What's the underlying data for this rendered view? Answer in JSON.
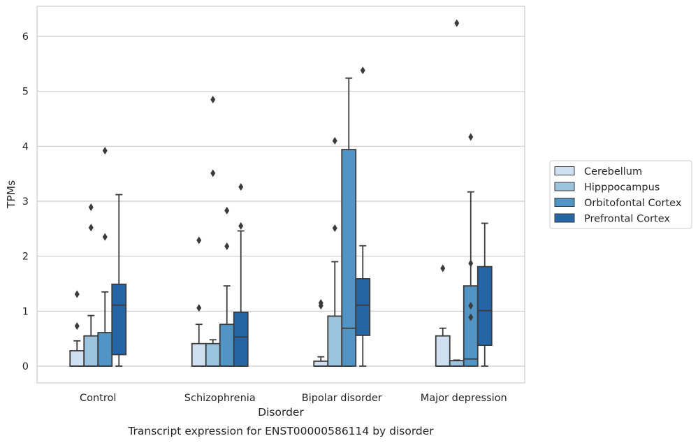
{
  "caption": "Transcript expression for ENST00000586114 by disorder",
  "colors": {
    "Cerebellum": "#d0e0f1",
    "Hipppocampus": "#9cc4df",
    "Orbitofontal Cortex": "#5295c5",
    "Prefrontal Cortex": "#2565a6",
    "box_edge": "#3b3b3b",
    "grid": "#cccccc",
    "frame": "#cccccc"
  },
  "chart_data": {
    "type": "box",
    "title": "",
    "xlabel": "Disorder",
    "ylabel": "TPMs",
    "ylim": [
      -0.3,
      6.55
    ],
    "yticks": [
      0,
      1,
      2,
      3,
      4,
      5,
      6
    ],
    "grid": true,
    "legend_position": "right",
    "categories": [
      "Control",
      "Schizophrenia",
      "Bipolar disorder",
      "Major depression"
    ],
    "series": [
      {
        "name": "Cerebellum",
        "boxes": [
          {
            "whislo": 0.0,
            "q1": 0.0,
            "med": 0.0,
            "q3": 0.28,
            "whishi": 0.46,
            "fliers": [
              0.73,
              1.31
            ]
          },
          {
            "whislo": 0.0,
            "q1": 0.0,
            "med": 0.0,
            "q3": 0.41,
            "whishi": 0.76,
            "fliers": [
              1.06,
              2.29
            ]
          },
          {
            "whislo": 0.0,
            "q1": 0.0,
            "med": 0.0,
            "q3": 0.09,
            "whishi": 0.17,
            "fliers": [
              1.1,
              1.15
            ]
          },
          {
            "whislo": 0.0,
            "q1": 0.0,
            "med": 0.0,
            "q3": 0.55,
            "whishi": 0.69,
            "fliers": [
              1.78
            ]
          }
        ]
      },
      {
        "name": "Hipppocampus",
        "boxes": [
          {
            "whislo": 0.0,
            "q1": 0.0,
            "med": 0.0,
            "q3": 0.55,
            "whishi": 0.92,
            "fliers": [
              2.52,
              2.89
            ]
          },
          {
            "whislo": 0.0,
            "q1": 0.0,
            "med": 0.0,
            "q3": 0.41,
            "whishi": 0.48,
            "fliers": [
              3.51,
              4.85
            ]
          },
          {
            "whislo": 0.0,
            "q1": 0.0,
            "med": 0.0,
            "q3": 0.91,
            "whishi": 1.9,
            "fliers": [
              2.51,
              4.1
            ]
          },
          {
            "whislo": 0.0,
            "q1": 0.0,
            "med": 0.0,
            "q3": 0.1,
            "whishi": 0.11,
            "fliers": [
              6.24
            ]
          }
        ]
      },
      {
        "name": "Orbitofontal Cortex",
        "boxes": [
          {
            "whislo": 0.0,
            "q1": 0.0,
            "med": 0.0,
            "q3": 0.61,
            "whishi": 1.35,
            "fliers": [
              2.35,
              3.92
            ]
          },
          {
            "whislo": 0.0,
            "q1": 0.0,
            "med": 0.0,
            "q3": 0.76,
            "whishi": 1.46,
            "fliers": [
              2.18,
              2.83
            ]
          },
          {
            "whislo": 0.0,
            "q1": 0.0,
            "med": 0.69,
            "q3": 3.94,
            "whishi": 5.24,
            "fliers": []
          },
          {
            "whislo": 0.0,
            "q1": 0.0,
            "med": 0.13,
            "q3": 1.46,
            "whishi": 3.17,
            "fliers": [
              0.89,
              1.1,
              1.87,
              4.17
            ]
          }
        ]
      },
      {
        "name": "Prefrontal Cortex",
        "boxes": [
          {
            "whislo": 0.0,
            "q1": 0.21,
            "med": 1.11,
            "q3": 1.49,
            "whishi": 3.12,
            "fliers": []
          },
          {
            "whislo": 0.0,
            "q1": 0.0,
            "med": 0.53,
            "q3": 0.98,
            "whishi": 2.46,
            "fliers": [
              2.55,
              3.26
            ]
          },
          {
            "whislo": 0.0,
            "q1": 0.56,
            "med": 1.11,
            "q3": 1.59,
            "whishi": 2.19,
            "fliers": [
              5.38
            ]
          },
          {
            "whislo": 0.0,
            "q1": 0.38,
            "med": 1.01,
            "q3": 1.81,
            "whishi": 2.6,
            "fliers": []
          }
        ]
      }
    ]
  }
}
